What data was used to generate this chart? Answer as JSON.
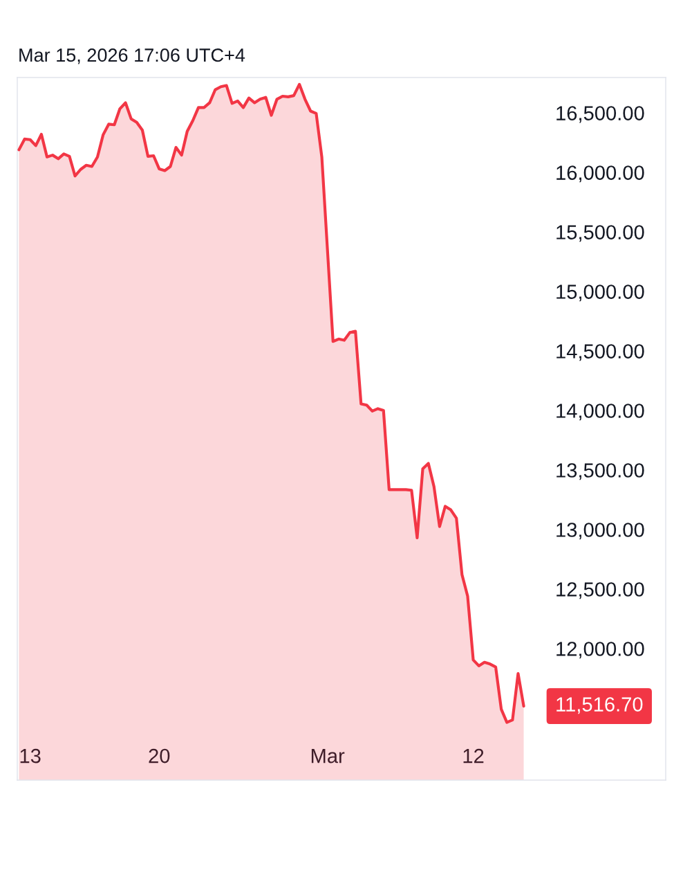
{
  "chart_data": {
    "type": "area",
    "title": "Mar 15, 2026 17:06 UTC+4",
    "categories": [
      null,
      null,
      "13",
      null,
      null,
      null,
      null,
      null,
      null,
      null,
      null,
      null,
      null,
      null,
      null,
      null,
      null,
      null,
      null,
      null,
      null,
      null,
      null,
      null,
      null,
      "20",
      null,
      null,
      null,
      null,
      null,
      null,
      null,
      null,
      null,
      null,
      null,
      null,
      null,
      null,
      null,
      null,
      null,
      null,
      null,
      null,
      null,
      null,
      null,
      null,
      null,
      null,
      null,
      null,
      null,
      "Mar",
      null,
      null,
      null,
      null,
      null,
      null,
      null,
      null,
      null,
      null,
      null,
      null,
      null,
      null,
      null,
      null,
      null,
      null,
      null,
      null,
      null,
      null,
      null,
      null,
      null,
      "12",
      null,
      null,
      null,
      null,
      null,
      null,
      null,
      null,
      null
    ],
    "values": [
      16190,
      16280,
      16275,
      16225,
      16320,
      16130,
      16145,
      16115,
      16155,
      16135,
      15970,
      16025,
      16060,
      16050,
      16130,
      16315,
      16405,
      16400,
      16535,
      16585,
      16450,
      16420,
      16355,
      16135,
      16140,
      16030,
      16015,
      16050,
      16210,
      16145,
      16345,
      16435,
      16545,
      16545,
      16585,
      16695,
      16720,
      16730,
      16580,
      16600,
      16545,
      16625,
      16585,
      16615,
      16630,
      16480,
      16615,
      16640,
      16635,
      16645,
      16740,
      16615,
      16515,
      16495,
      16130,
      15355,
      14580,
      14600,
      14590,
      14655,
      14665,
      14055,
      14045,
      13995,
      14015,
      14000,
      13335,
      13335,
      13335,
      13335,
      13330,
      12930,
      13510,
      13555,
      13360,
      13025,
      13195,
      13165,
      13095,
      12620,
      12440,
      11905,
      11855,
      11885,
      11870,
      11845,
      11490,
      11380,
      11400,
      11790,
      11516.7
    ],
    "value_labels": [
      null,
      null,
      null,
      null,
      null,
      null,
      null,
      null,
      null,
      null,
      null,
      null,
      null,
      null,
      null,
      null,
      null,
      null,
      null,
      null,
      null,
      null,
      null,
      null,
      null,
      null,
      null,
      null,
      null,
      null,
      null,
      null,
      null,
      null,
      null,
      null,
      null,
      null,
      null,
      null,
      null,
      null,
      null,
      null,
      null,
      null,
      null,
      null,
      null,
      null,
      null,
      null,
      null,
      null,
      null,
      null,
      null,
      null,
      null,
      null,
      null,
      null,
      null,
      null,
      null,
      null,
      null,
      null,
      null,
      null,
      null,
      null,
      null,
      null,
      null,
      null,
      null,
      null,
      null,
      null,
      null,
      null,
      null,
      null,
      null,
      null,
      null,
      null,
      null,
      null,
      "11,516.70"
    ],
    "color": "#f23645",
    "ylim": [
      10895,
      16797
    ],
    "yticks": [
      {
        "value": 12000,
        "label": "12,000.00"
      },
      {
        "value": 12500,
        "label": "12,500.00"
      },
      {
        "value": 13000,
        "label": "13,000.00"
      },
      {
        "value": 13500,
        "label": "13,500.00"
      },
      {
        "value": 14000,
        "label": "14,000.00"
      },
      {
        "value": 14500,
        "label": "14,500.00"
      },
      {
        "value": 15000,
        "label": "15,000.00"
      },
      {
        "value": 15500,
        "label": "15,500.00"
      },
      {
        "value": 16000,
        "label": "16,000.00"
      },
      {
        "value": 16500,
        "label": "16,500.00"
      }
    ]
  }
}
